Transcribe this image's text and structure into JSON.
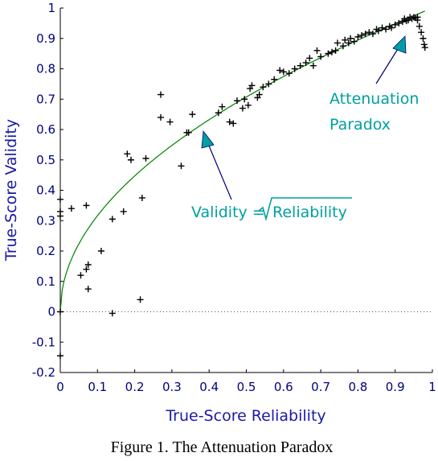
{
  "caption": "Figure 1.  The Attenuation Paradox",
  "chart_data": {
    "type": "scatter",
    "title": "",
    "xlabel": "True-Score Reliability",
    "ylabel": "True-Score Validity",
    "xlim": [
      0,
      1
    ],
    "ylim": [
      -0.2,
      1
    ],
    "x_ticks": [
      "0",
      "0.1",
      "0.2",
      "0.3",
      "0.4",
      "0.5",
      "0.6",
      "0.7",
      "0.8",
      "0.9",
      "1"
    ],
    "y_ticks": [
      "-0.2",
      "-0.1",
      "0",
      "0.1",
      "0.2",
      "0.3",
      "0.4",
      "0.5",
      "0.6",
      "0.7",
      "0.8",
      "0.9",
      "1"
    ],
    "reference_line": {
      "y": 0,
      "style": "dotted"
    },
    "colors": {
      "points": "#000000",
      "curve": "#008000",
      "annotation": "#00a0a0",
      "axis_text": "#00007f"
    },
    "curve": {
      "label": "Validity = √Reliability",
      "function": "sqrt"
    },
    "annotations": [
      {
        "id": "sqrt-label",
        "text_prefix": "Validity =",
        "text_radical": "Reliability",
        "arrow_to": [
          0.39,
          0.58
        ]
      },
      {
        "id": "paradox-label",
        "lines": [
          "Attenuation",
          "Paradox"
        ],
        "arrow_to": [
          0.97,
          0.88
        ]
      }
    ],
    "series": [
      {
        "marker": "plus",
        "points": [
          [
            0.0,
            0.37
          ],
          [
            0.0,
            0.33
          ],
          [
            0.0,
            0.315
          ],
          [
            0.0,
            -0.145
          ],
          [
            0.0,
            0.0
          ],
          [
            0.03,
            0.34
          ],
          [
            0.055,
            0.12
          ],
          [
            0.07,
            0.35
          ],
          [
            0.07,
            0.14
          ],
          [
            0.075,
            0.155
          ],
          [
            0.075,
            0.075
          ],
          [
            0.11,
            0.2
          ],
          [
            0.14,
            0.305
          ],
          [
            0.14,
            -0.005
          ],
          [
            0.17,
            0.33
          ],
          [
            0.18,
            0.52
          ],
          [
            0.19,
            0.5
          ],
          [
            0.215,
            0.04
          ],
          [
            0.22,
            0.375
          ],
          [
            0.23,
            0.505
          ],
          [
            0.27,
            0.715
          ],
          [
            0.27,
            0.64
          ],
          [
            0.295,
            0.625
          ],
          [
            0.325,
            0.48
          ],
          [
            0.34,
            0.59
          ],
          [
            0.345,
            0.59
          ],
          [
            0.355,
            0.65
          ],
          [
            0.425,
            0.655
          ],
          [
            0.435,
            0.675
          ],
          [
            0.455,
            0.625
          ],
          [
            0.465,
            0.62
          ],
          [
            0.475,
            0.695
          ],
          [
            0.49,
            0.67
          ],
          [
            0.495,
            0.7
          ],
          [
            0.505,
            0.68
          ],
          [
            0.51,
            0.735
          ],
          [
            0.515,
            0.745
          ],
          [
            0.53,
            0.705
          ],
          [
            0.535,
            0.715
          ],
          [
            0.545,
            0.74
          ],
          [
            0.56,
            0.75
          ],
          [
            0.575,
            0.765
          ],
          [
            0.59,
            0.795
          ],
          [
            0.6,
            0.79
          ],
          [
            0.615,
            0.785
          ],
          [
            0.63,
            0.8
          ],
          [
            0.645,
            0.81
          ],
          [
            0.66,
            0.82
          ],
          [
            0.67,
            0.835
          ],
          [
            0.68,
            0.81
          ],
          [
            0.69,
            0.86
          ],
          [
            0.7,
            0.84
          ],
          [
            0.72,
            0.85
          ],
          [
            0.73,
            0.855
          ],
          [
            0.74,
            0.86
          ],
          [
            0.745,
            0.885
          ],
          [
            0.76,
            0.875
          ],
          [
            0.765,
            0.895
          ],
          [
            0.775,
            0.885
          ],
          [
            0.78,
            0.9
          ],
          [
            0.79,
            0.89
          ],
          [
            0.8,
            0.905
          ],
          [
            0.81,
            0.91
          ],
          [
            0.82,
            0.915
          ],
          [
            0.83,
            0.92
          ],
          [
            0.84,
            0.915
          ],
          [
            0.85,
            0.93
          ],
          [
            0.855,
            0.925
          ],
          [
            0.865,
            0.935
          ],
          [
            0.875,
            0.93
          ],
          [
            0.885,
            0.94
          ],
          [
            0.89,
            0.935
          ],
          [
            0.9,
            0.945
          ],
          [
            0.91,
            0.95
          ],
          [
            0.92,
            0.955
          ],
          [
            0.925,
            0.965
          ],
          [
            0.935,
            0.96
          ],
          [
            0.94,
            0.97
          ],
          [
            0.945,
            0.965
          ],
          [
            0.95,
            0.97
          ],
          [
            0.96,
            0.96
          ],
          [
            0.965,
            0.94
          ],
          [
            0.97,
            0.92
          ],
          [
            0.975,
            0.9
          ],
          [
            0.978,
            0.88
          ],
          [
            0.98,
            0.87
          ],
          [
            0.96,
            0.97
          ],
          [
            0.955,
            0.968
          ],
          [
            0.93,
            0.958
          ]
        ]
      }
    ]
  }
}
